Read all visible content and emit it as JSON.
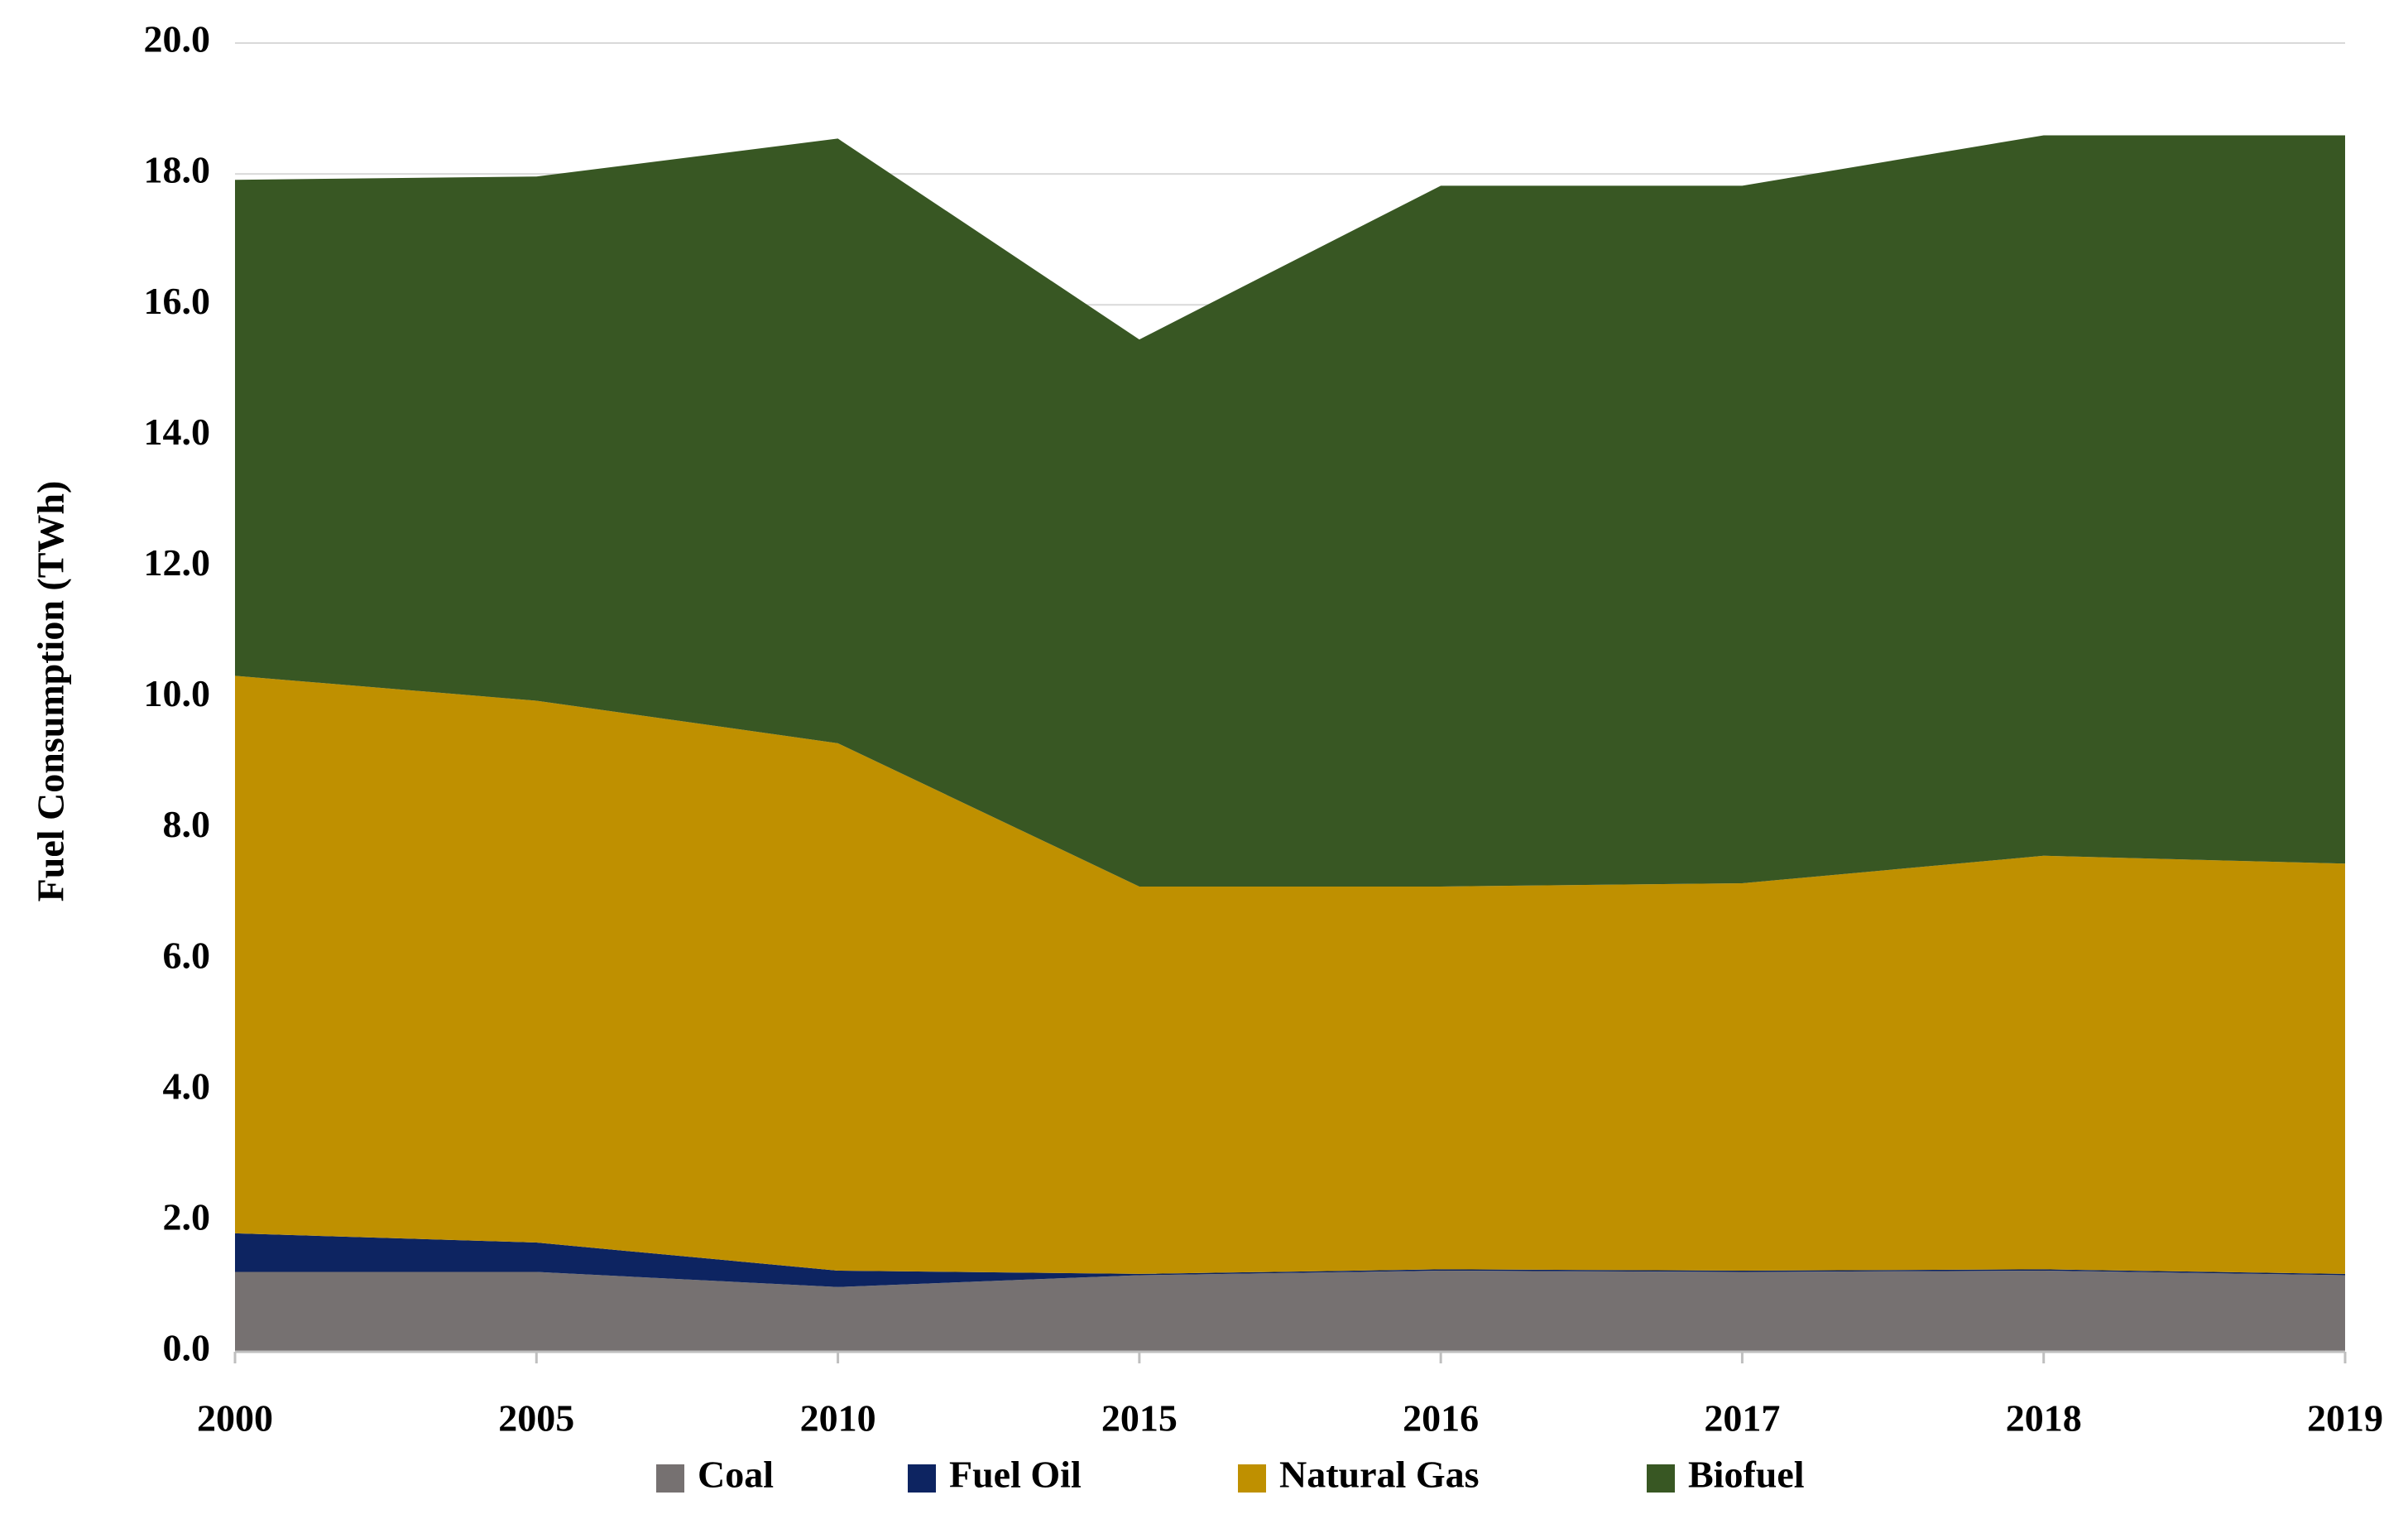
{
  "chart_data": {
    "type": "stacked_area",
    "y_label": "Fuel Consumption (TWh)",
    "categories": [
      "2000",
      "2005",
      "2010",
      "2015",
      "2016",
      "2017",
      "2018",
      "2019"
    ],
    "series": [
      {
        "name": "Coal",
        "color": "#767171",
        "values": [
          1.22,
          1.22,
          0.99,
          1.17,
          1.24,
          1.22,
          1.24,
          1.17
        ]
      },
      {
        "name": "Fuel Oil",
        "color": "#0d2461",
        "values": [
          0.59,
          0.45,
          0.25,
          0.02,
          0.02,
          0.02,
          0.02,
          0.02
        ]
      },
      {
        "name": "Natural Gas",
        "color": "#bf9000",
        "values": [
          8.52,
          8.28,
          8.06,
          5.92,
          5.85,
          5.92,
          6.32,
          6.27
        ]
      },
      {
        "name": "Biofuel",
        "color": "#385723",
        "values": [
          7.58,
          8.01,
          9.24,
          8.36,
          10.71,
          10.66,
          11.01,
          11.13
        ]
      }
    ],
    "ylim": [
      0,
      20
    ],
    "yticks": [
      {
        "value": 0,
        "label": "0.0"
      },
      {
        "value": 2,
        "label": "2.0"
      },
      {
        "value": 4,
        "label": "4.0"
      },
      {
        "value": 6,
        "label": "6.0"
      },
      {
        "value": 8,
        "label": "8.0"
      },
      {
        "value": 10,
        "label": "10.0"
      },
      {
        "value": 12,
        "label": "12.0"
      },
      {
        "value": 14,
        "label": "14.0"
      },
      {
        "value": 16,
        "label": "16.0"
      },
      {
        "value": 18,
        "label": "18.0"
      },
      {
        "value": 20,
        "label": "20.0"
      }
    ],
    "grid": true,
    "legend": "bottom"
  }
}
